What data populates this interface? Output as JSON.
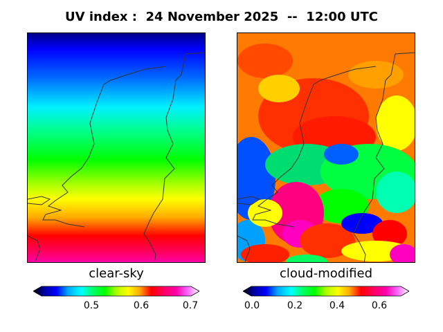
{
  "title": "UV index :  24 November 2025  --  12:00 UTC",
  "panels": [
    {
      "label": "clear-sky",
      "colorbar_ticks": [
        "0.5",
        "0.6",
        "0.7"
      ],
      "range": [
        0.4,
        0.7
      ]
    },
    {
      "label": "cloud-modified",
      "colorbar_ticks": [
        "0.0",
        "0.2",
        "0.4",
        "0.6"
      ],
      "range": [
        0.0,
        0.7
      ]
    }
  ],
  "colormap": [
    "#000000",
    "#0000aa",
    "#0000ff",
    "#00aaff",
    "#00ffff",
    "#00ff66",
    "#00ff00",
    "#aaff00",
    "#ffff00",
    "#ffaa00",
    "#ff0000",
    "#ff0066",
    "#ff00aa",
    "#ff66ff",
    "#ffffff"
  ],
  "coast_color": "#333333"
}
